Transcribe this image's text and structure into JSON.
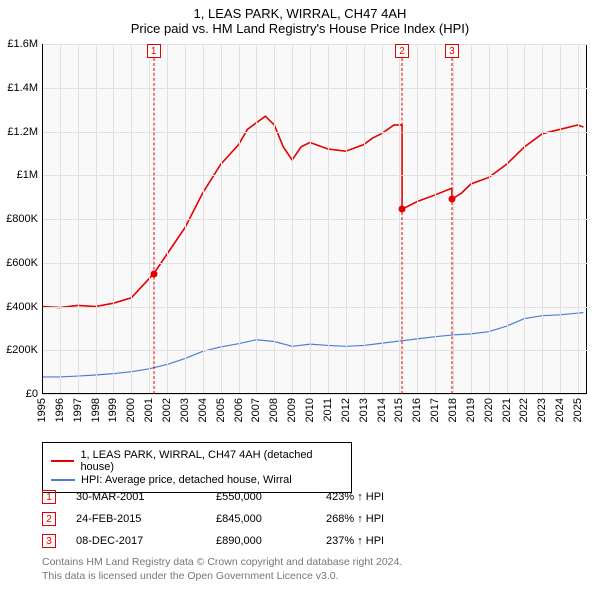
{
  "title": {
    "line1": "1, LEAS PARK, WIRRAL, CH47 4AH",
    "line2": "Price paid vs. HM Land Registry's House Price Index (HPI)"
  },
  "chart": {
    "background_color": "#f9f9f9",
    "grid_color": "#e0e0e0",
    "axis_color": "#000000",
    "y": {
      "min": 0,
      "max": 1600000,
      "ticks": [
        0,
        200000,
        400000,
        600000,
        800000,
        1000000,
        1200000,
        1400000,
        1600000
      ],
      "labels": [
        "£0",
        "£200K",
        "£400K",
        "£600K",
        "£800K",
        "£1M",
        "£1.2M",
        "£1.4M",
        "£1.6M"
      ]
    },
    "x": {
      "min": 1995,
      "max": 2025.5,
      "ticks": [
        1995,
        1996,
        1997,
        1998,
        1999,
        2000,
        2001,
        2002,
        2003,
        2004,
        2005,
        2006,
        2007,
        2008,
        2009,
        2010,
        2011,
        2012,
        2013,
        2014,
        2015,
        2016,
        2017,
        2018,
        2019,
        2020,
        2021,
        2022,
        2023,
        2024,
        2025
      ],
      "labels": [
        "1995",
        "1996",
        "1997",
        "1998",
        "1999",
        "2000",
        "2001",
        "2002",
        "2003",
        "2004",
        "2005",
        "2006",
        "2007",
        "2008",
        "2009",
        "2010",
        "2011",
        "2012",
        "2013",
        "2014",
        "2015",
        "2016",
        "2017",
        "2018",
        "2019",
        "2020",
        "2021",
        "2022",
        "2023",
        "2024",
        "2025"
      ]
    },
    "series": {
      "price": {
        "color": "#e60000",
        "width": 1.6,
        "points": [
          [
            1995,
            400000
          ],
          [
            1996,
            395000
          ],
          [
            1997,
            405000
          ],
          [
            1998,
            400000
          ],
          [
            1999,
            415000
          ],
          [
            2000,
            440000
          ],
          [
            2001.25,
            550000
          ],
          [
            2002,
            640000
          ],
          [
            2003,
            760000
          ],
          [
            2004,
            920000
          ],
          [
            2005,
            1050000
          ],
          [
            2006,
            1140000
          ],
          [
            2006.5,
            1210000
          ],
          [
            2007,
            1240000
          ],
          [
            2007.5,
            1270000
          ],
          [
            2008,
            1230000
          ],
          [
            2008.5,
            1130000
          ],
          [
            2009,
            1070000
          ],
          [
            2009.5,
            1130000
          ],
          [
            2010,
            1150000
          ],
          [
            2011,
            1120000
          ],
          [
            2012,
            1110000
          ],
          [
            2013,
            1140000
          ],
          [
            2013.5,
            1170000
          ],
          [
            2014,
            1190000
          ],
          [
            2014.7,
            1230000
          ],
          [
            2015.15,
            1230000
          ],
          [
            2015.15,
            845000
          ],
          [
            2016,
            880000
          ],
          [
            2017,
            910000
          ],
          [
            2017.9,
            940000
          ],
          [
            2017.94,
            940000
          ],
          [
            2017.94,
            890000
          ],
          [
            2018.5,
            920000
          ],
          [
            2019,
            960000
          ],
          [
            2020,
            990000
          ],
          [
            2021,
            1050000
          ],
          [
            2022,
            1130000
          ],
          [
            2023,
            1190000
          ],
          [
            2024,
            1210000
          ],
          [
            2025,
            1230000
          ],
          [
            2025.3,
            1220000
          ]
        ]
      },
      "hpi": {
        "color": "#4a7fd4",
        "width": 1.2,
        "points": [
          [
            1995,
            78000
          ],
          [
            1996,
            78000
          ],
          [
            1997,
            82000
          ],
          [
            1998,
            87000
          ],
          [
            1999,
            93000
          ],
          [
            2000,
            102000
          ],
          [
            2001,
            115000
          ],
          [
            2002,
            135000
          ],
          [
            2003,
            162000
          ],
          [
            2004,
            195000
          ],
          [
            2005,
            215000
          ],
          [
            2006,
            230000
          ],
          [
            2007,
            248000
          ],
          [
            2008,
            240000
          ],
          [
            2009,
            218000
          ],
          [
            2010,
            228000
          ],
          [
            2011,
            222000
          ],
          [
            2012,
            218000
          ],
          [
            2013,
            222000
          ],
          [
            2014,
            232000
          ],
          [
            2015,
            242000
          ],
          [
            2016,
            252000
          ],
          [
            2017,
            262000
          ],
          [
            2018,
            270000
          ],
          [
            2019,
            275000
          ],
          [
            2020,
            285000
          ],
          [
            2021,
            310000
          ],
          [
            2022,
            345000
          ],
          [
            2023,
            358000
          ],
          [
            2024,
            362000
          ],
          [
            2025,
            370000
          ],
          [
            2025.3,
            372000
          ]
        ]
      }
    },
    "markers": [
      {
        "num": "1",
        "x": 2001.25,
        "y": 550000,
        "color": "#e60000"
      },
      {
        "num": "2",
        "x": 2015.15,
        "y": 845000,
        "color": "#e60000"
      },
      {
        "num": "3",
        "x": 2017.94,
        "y": 890000,
        "color": "#e60000"
      }
    ]
  },
  "legend": {
    "items": [
      {
        "color": "#e60000",
        "label": "1, LEAS PARK, WIRRAL, CH47 4AH (detached house)"
      },
      {
        "color": "#4a7fd4",
        "label": "HPI: Average price, detached house, Wirral"
      }
    ]
  },
  "transactions": [
    {
      "num": "1",
      "color": "#e60000",
      "date": "30-MAR-2001",
      "price": "£550,000",
      "hpi": "423% ↑ HPI"
    },
    {
      "num": "2",
      "color": "#e60000",
      "date": "24-FEB-2015",
      "price": "£845,000",
      "hpi": "268% ↑ HPI"
    },
    {
      "num": "3",
      "color": "#e60000",
      "date": "08-DEC-2017",
      "price": "£890,000",
      "hpi": "237% ↑ HPI"
    }
  ],
  "footer": {
    "line1": "Contains HM Land Registry data © Crown copyright and database right 2024.",
    "line2": "This data is licensed under the Open Government Licence v3.0."
  }
}
